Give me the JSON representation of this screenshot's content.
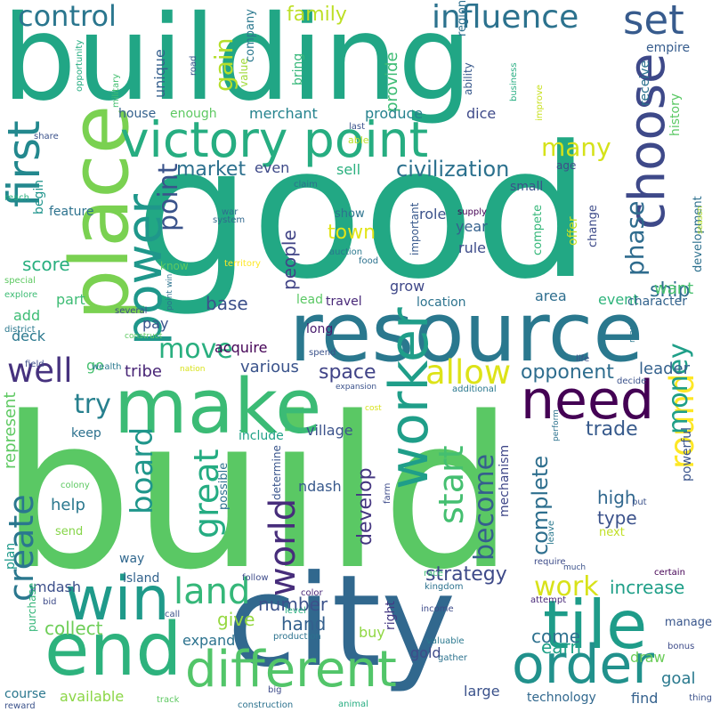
{
  "words": [
    {
      "text": "build",
      "color": "#5ac864"
    },
    {
      "text": "good",
      "color": "#22a884"
    },
    {
      "text": "building",
      "color": "#21a685"
    },
    {
      "text": "city",
      "color": "#31688e"
    },
    {
      "text": "resource",
      "color": "#2a788e"
    },
    {
      "text": "make",
      "color": "#3bbb75"
    },
    {
      "text": "place",
      "color": "#7ad151"
    },
    {
      "text": "victory point",
      "color": "#26ad81"
    },
    {
      "text": "end",
      "color": "#2db27d"
    },
    {
      "text": "win",
      "color": "#1f9a8a"
    },
    {
      "text": "tile",
      "color": "#1e9c89"
    },
    {
      "text": "order",
      "color": "#21918c"
    },
    {
      "text": "different",
      "color": "#52c569"
    },
    {
      "text": "need",
      "color": "#440154"
    },
    {
      "text": "choose",
      "color": "#3e4989"
    },
    {
      "text": "first",
      "color": "#23888e"
    },
    {
      "text": "power",
      "color": "#1f978b"
    },
    {
      "text": "worker",
      "color": "#1f9e89"
    },
    {
      "text": "set",
      "color": "#375b8d"
    },
    {
      "text": "influence",
      "color": "#2c728e"
    },
    {
      "text": "control",
      "color": "#2a768e"
    },
    {
      "text": "land",
      "color": "#35b779"
    },
    {
      "text": "world",
      "color": "#472d7b"
    },
    {
      "text": "create",
      "color": "#2a778e"
    },
    {
      "text": "great",
      "color": "#25ac82"
    },
    {
      "text": "allow",
      "color": "#dde318"
    },
    {
      "text": "well",
      "color": "#46327e"
    },
    {
      "text": "round",
      "color": "#fde725"
    },
    {
      "text": "board",
      "color": "#1f968b"
    },
    {
      "text": "start",
      "color": "#44bf70"
    },
    {
      "text": "money",
      "color": "#1f9f88"
    },
    {
      "text": "move",
      "color": "#29af7f"
    },
    {
      "text": "become",
      "color": "#355e8d"
    },
    {
      "text": "try",
      "color": "#27808e"
    },
    {
      "text": "work",
      "color": "#d8e219"
    },
    {
      "text": "point",
      "color": "#3a538b"
    },
    {
      "text": "phase",
      "color": "#2f6c8e"
    },
    {
      "text": "many",
      "color": "#d5e21a"
    },
    {
      "text": "gain",
      "color": "#b5de2b"
    },
    {
      "text": "civilization",
      "color": "#2c718e"
    },
    {
      "text": "market",
      "color": "#2d708e"
    },
    {
      "text": "develop",
      "color": "#453781"
    },
    {
      "text": "complete",
      "color": "#2e6f8e"
    },
    {
      "text": "ship",
      "color": "#2e6e8e"
    },
    {
      "text": "space",
      "color": "#404387"
    },
    {
      "text": "town",
      "color": "#e2e418"
    },
    {
      "text": "opponent",
      "color": "#2e6d8e"
    },
    {
      "text": "family",
      "color": "#bddf26"
    },
    {
      "text": "strategy",
      "color": "#3e4a89"
    },
    {
      "text": "trade",
      "color": "#375a8c"
    },
    {
      "text": "score",
      "color": "#29af7f"
    },
    {
      "text": "people",
      "color": "#414487"
    },
    {
      "text": "increase",
      "color": "#1f9f88"
    },
    {
      "text": "represent",
      "color": "#5ec962"
    },
    {
      "text": "number",
      "color": "#3b528b"
    },
    {
      "text": "hand",
      "color": "#34608d"
    },
    {
      "text": "collect",
      "color": "#6ece58"
    },
    {
      "text": "give",
      "color": "#95d840"
    },
    {
      "text": "earn",
      "color": "#1fa187"
    },
    {
      "text": "various",
      "color": "#3a538b"
    },
    {
      "text": "leader",
      "color": "#34618d"
    },
    {
      "text": "base",
      "color": "#3c508b"
    },
    {
      "text": "tribe",
      "color": "#482576"
    },
    {
      "text": "high",
      "color": "#31688e"
    },
    {
      "text": "type",
      "color": "#3b528b"
    },
    {
      "text": "help",
      "color": "#2a788e"
    },
    {
      "text": "come",
      "color": "#2d718e"
    },
    {
      "text": "goal",
      "color": "#29798e"
    },
    {
      "text": "want",
      "color": "#48c16e"
    },
    {
      "text": "provide",
      "color": "#3dbc74"
    },
    {
      "text": "unique",
      "color": "#355f8d"
    },
    {
      "text": "merchant",
      "color": "#25838e"
    },
    {
      "text": "produce",
      "color": "#26828e"
    },
    {
      "text": "dice",
      "color": "#3e4a89"
    },
    {
      "text": "sell",
      "color": "#2ab07f"
    },
    {
      "text": "role",
      "color": "#3b528b"
    },
    {
      "text": "year",
      "color": "#34618d"
    },
    {
      "text": "rule",
      "color": "#3e4c8a"
    },
    {
      "text": "even",
      "color": "#3e4a89"
    },
    {
      "text": "acquire",
      "color": "#440256"
    },
    {
      "text": "mechanism",
      "color": "#3f4788"
    },
    {
      "text": "mdash",
      "color": "#3c4f8a"
    },
    {
      "text": "ndash",
      "color": "#38598c"
    },
    {
      "text": "island",
      "color": "#33638d"
    },
    {
      "text": "large",
      "color": "#3b528b"
    },
    {
      "text": "available",
      "color": "#8bd646"
    },
    {
      "text": "find",
      "color": "#34618d"
    },
    {
      "text": "technology",
      "color": "#31688e"
    },
    {
      "text": "draw",
      "color": "#6ccd5a"
    },
    {
      "text": "buy",
      "color": "#90d743"
    },
    {
      "text": "gold",
      "color": "#3e4c8a"
    },
    {
      "text": "expand",
      "color": "#2c728e"
    },
    {
      "text": "area",
      "color": "#2e6e8e"
    },
    {
      "text": "event",
      "color": "#2fb47c"
    },
    {
      "text": "character",
      "color": "#33638d"
    },
    {
      "text": "grow",
      "color": "#3f4889"
    },
    {
      "text": "location",
      "color": "#2c738e"
    },
    {
      "text": "village",
      "color": "#3b528b"
    },
    {
      "text": "include",
      "color": "#1fa187"
    },
    {
      "text": "lead",
      "color": "#5ac864"
    },
    {
      "text": "long",
      "color": "#481b6d"
    },
    {
      "text": "travel",
      "color": "#482878"
    },
    {
      "text": "house",
      "color": "#34618d"
    },
    {
      "text": "enough",
      "color": "#5ec962"
    },
    {
      "text": "feature",
      "color": "#2c728e"
    },
    {
      "text": "deck",
      "color": "#2a788e"
    },
    {
      "text": "add",
      "color": "#3dbc74"
    },
    {
      "text": "part",
      "color": "#3dbc74"
    },
    {
      "text": "pay",
      "color": "#3a548c"
    },
    {
      "text": "go",
      "color": "#46c06f"
    },
    {
      "text": "keep",
      "color": "#2c718e"
    },
    {
      "text": "way",
      "color": "#31688e"
    },
    {
      "text": "plan",
      "color": "#1f9a8a"
    },
    {
      "text": "course",
      "color": "#2a778e"
    },
    {
      "text": "empire",
      "color": "#365c8d"
    },
    {
      "text": "history",
      "color": "#5ac864"
    },
    {
      "text": "receive",
      "color": "#2c728e"
    },
    {
      "text": "development",
      "color": "#2d708e"
    },
    {
      "text": "region",
      "color": "#2d708e"
    },
    {
      "text": "ability",
      "color": "#38598c"
    },
    {
      "text": "company",
      "color": "#2a788e"
    },
    {
      "text": "value",
      "color": "#a0da39"
    },
    {
      "text": "bring",
      "color": "#35b779"
    },
    {
      "text": "small",
      "color": "#3b528b"
    },
    {
      "text": "show",
      "color": "#2c738e"
    },
    {
      "text": "compete",
      "color": "#35b779"
    },
    {
      "text": "offer",
      "color": "#c8e020"
    },
    {
      "text": "change",
      "color": "#3e4c8a"
    },
    {
      "text": "age",
      "color": "#3e4c8a"
    },
    {
      "text": "begin",
      "color": "#1f948c"
    },
    {
      "text": "know",
      "color": "#5ec962"
    },
    {
      "text": "possible",
      "color": "#2d718e"
    },
    {
      "text": "determine",
      "color": "#39558c"
    },
    {
      "text": "right",
      "color": "#443983"
    },
    {
      "text": "send",
      "color": "#86d549"
    },
    {
      "text": "next",
      "color": "#c0df25"
    },
    {
      "text": "purchase",
      "color": "#34b679"
    },
    {
      "text": "manage",
      "color": "#39568c"
    },
    {
      "text": "powerful",
      "color": "#3a548c"
    },
    {
      "text": "important",
      "color": "#38598c"
    },
    {
      "text": "auction",
      "color": "#2a788e"
    },
    {
      "text": "food",
      "color": "#2c728e"
    },
    {
      "text": "improve",
      "color": "#c8e020"
    },
    {
      "text": "business",
      "color": "#26ad81"
    },
    {
      "text": "military",
      "color": "#44bf70"
    },
    {
      "text": "opportunity",
      "color": "#26ad81"
    },
    {
      "text": "road",
      "color": "#3a548c"
    },
    {
      "text": "last",
      "color": "#3b528b"
    },
    {
      "text": "able",
      "color": "#bddf26"
    },
    {
      "text": "share",
      "color": "#3b528b"
    },
    {
      "text": "claim",
      "color": "#2c728e"
    },
    {
      "text": "war",
      "color": "#2e6d8e"
    },
    {
      "text": "system",
      "color": "#31688e"
    },
    {
      "text": "territory",
      "color": "#fde725"
    },
    {
      "text": "supply",
      "color": "#440154"
    },
    {
      "text": "season",
      "color": "#b5de2b"
    },
    {
      "text": "reach",
      "color": "#2ab07f"
    },
    {
      "text": "special",
      "color": "#5ec962"
    },
    {
      "text": "explore",
      "color": "#3dbc74"
    },
    {
      "text": "district",
      "color": "#2a788e"
    },
    {
      "text": "several",
      "color": "#3e4c8a"
    },
    {
      "text": "point win",
      "color": "#2c728e"
    },
    {
      "text": "construct",
      "color": "#5ec962"
    },
    {
      "text": "nation",
      "color": "#d8e219"
    },
    {
      "text": "spend",
      "color": "#3b528b"
    },
    {
      "text": "expansion",
      "color": "#3b528b"
    },
    {
      "text": "wealth",
      "color": "#2a788e"
    },
    {
      "text": "field",
      "color": "#3e4c8a"
    },
    {
      "text": "life",
      "color": "#3b528b"
    },
    {
      "text": "additional",
      "color": "#2a788e"
    },
    {
      "text": "decide",
      "color": "#3b528b"
    },
    {
      "text": "map",
      "color": "#2a788e"
    },
    {
      "text": "cost",
      "color": "#d8e219"
    },
    {
      "text": "perform",
      "color": "#2c728e"
    },
    {
      "text": "colony",
      "color": "#5ec962"
    },
    {
      "text": "color",
      "color": "#482878"
    },
    {
      "text": "farm",
      "color": "#3e4c8a"
    },
    {
      "text": "race",
      "color": "#3dbc74"
    },
    {
      "text": "kingdom",
      "color": "#2c728e"
    },
    {
      "text": "leave",
      "color": "#2a788e"
    },
    {
      "text": "put",
      "color": "#3b528b"
    },
    {
      "text": "require",
      "color": "#3e4c8a"
    },
    {
      "text": "much",
      "color": "#3b528b"
    },
    {
      "text": "certain",
      "color": "#440154"
    },
    {
      "text": "follow",
      "color": "#3e4c8a"
    },
    {
      "text": "bid",
      "color": "#3e4c8a"
    },
    {
      "text": "call",
      "color": "#3b528b"
    },
    {
      "text": "level",
      "color": "#2ab07f"
    },
    {
      "text": "production",
      "color": "#2c728e"
    },
    {
      "text": "income",
      "color": "#3e4c8a"
    },
    {
      "text": "attempt",
      "color": "#482878"
    },
    {
      "text": "valuable",
      "color": "#2a788e"
    },
    {
      "text": "gather",
      "color": "#2c728e"
    },
    {
      "text": "bonus",
      "color": "#3e4c8a"
    },
    {
      "text": "thing",
      "color": "#3b528b"
    },
    {
      "text": "reward",
      "color": "#3b528b"
    },
    {
      "text": "track",
      "color": "#5ec962"
    },
    {
      "text": "big",
      "color": "#3e4c8a"
    },
    {
      "text": "construction",
      "color": "#2c728e"
    },
    {
      "text": "animal",
      "color": "#26ad81"
    }
  ]
}
